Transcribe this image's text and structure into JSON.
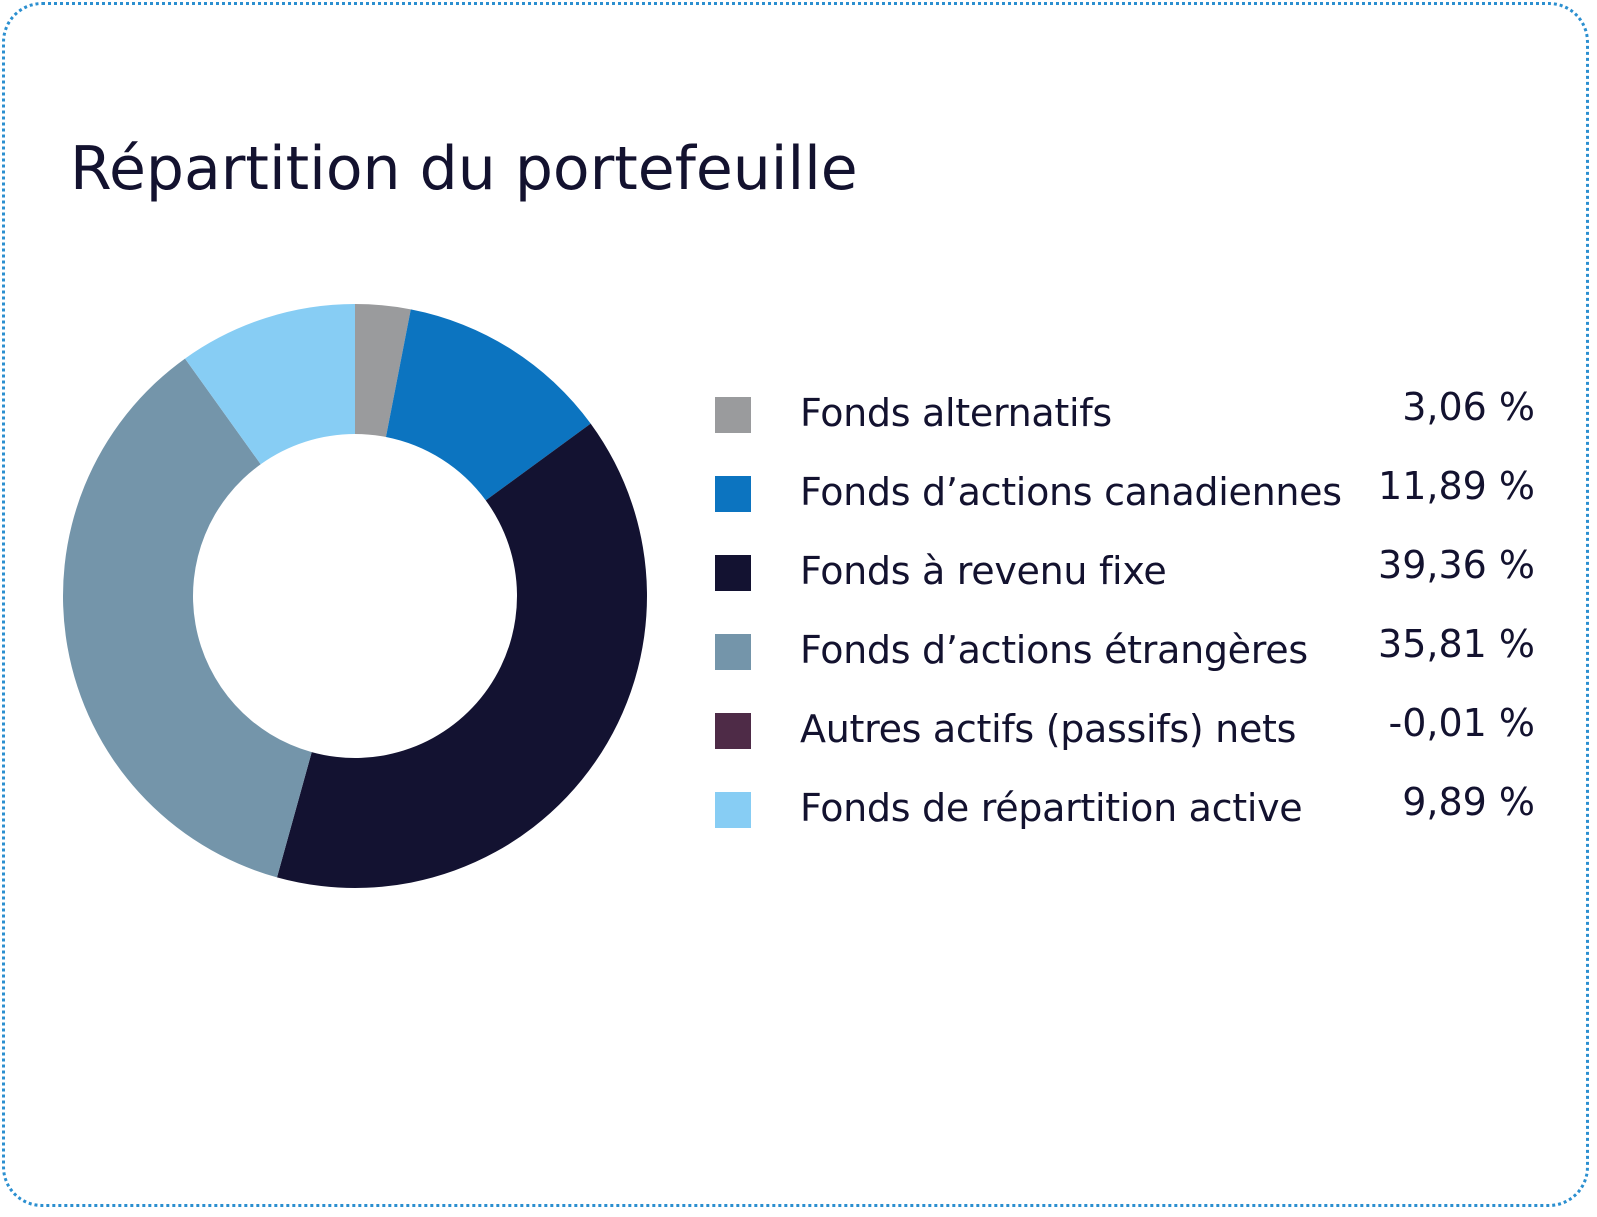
{
  "chart_data": {
    "type": "pie",
    "title": "Répartition du portefeuille",
    "categories": [
      "Fonds alternatifs",
      "Fonds d’actions canadiennes",
      "Fonds à revenu fixe",
      "Fonds d’actions étrangères",
      "Autres actifs (passifs) nets",
      "Fonds de répartition active"
    ],
    "values": [
      3.06,
      11.89,
      39.36,
      35.81,
      -0.01,
      9.89
    ],
    "value_labels": [
      "3,06 %",
      "11,89 %",
      "39,36 %",
      "35,81 %",
      "-0,01 %",
      "9,89 %"
    ],
    "colors": [
      "#9a9b9d",
      "#0c74c0",
      "#131231",
      "#7495aa",
      "#4e2b47",
      "#87cdf4"
    ],
    "donut": true,
    "legend_position": "right"
  },
  "colors": {
    "border": "#2b8fd0",
    "text": "#13122f"
  }
}
